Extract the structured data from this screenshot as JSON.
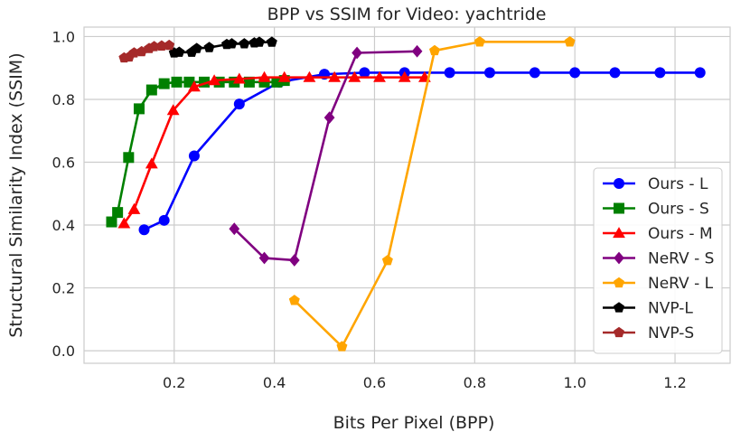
{
  "chart_data": {
    "type": "line",
    "title": "BPP vs SSIM for Video: yachtride",
    "xlabel": "Bits Per Pixel (BPP)",
    "ylabel": "Structural Similarity Index (SSIM)",
    "xlim": [
      0.02,
      1.31
    ],
    "ylim": [
      -0.04,
      1.03
    ],
    "xticks": [
      0.2,
      0.4,
      0.6,
      0.8,
      1.0,
      1.2
    ],
    "xtick_labels": [
      "0.2",
      "0.4",
      "0.6",
      "0.8",
      "1.0",
      "1.2"
    ],
    "yticks": [
      0.0,
      0.2,
      0.4,
      0.6,
      0.8,
      1.0
    ],
    "ytick_labels": [
      "0.0",
      "0.2",
      "0.4",
      "0.6",
      "0.8",
      "1.0"
    ],
    "grid": true,
    "legend_position": "lower-right",
    "series": [
      {
        "name": "Ours - L",
        "color": "#0000ff",
        "marker": "circle",
        "x": [
          0.14,
          0.18,
          0.24,
          0.33,
          0.41,
          0.5,
          0.58,
          0.66,
          0.75,
          0.83,
          0.92,
          1.0,
          1.08,
          1.17,
          1.25
        ],
        "y": [
          0.385,
          0.415,
          0.62,
          0.785,
          0.855,
          0.88,
          0.885,
          0.885,
          0.885,
          0.885,
          0.885,
          0.885,
          0.885,
          0.885,
          0.885
        ]
      },
      {
        "name": "Ours - S",
        "color": "#008000",
        "marker": "square",
        "x": [
          0.075,
          0.087,
          0.109,
          0.13,
          0.155,
          0.18,
          0.205,
          0.23,
          0.26,
          0.29,
          0.32,
          0.35,
          0.38,
          0.405,
          0.42
        ],
        "y": [
          0.41,
          0.44,
          0.615,
          0.77,
          0.83,
          0.85,
          0.855,
          0.855,
          0.855,
          0.855,
          0.855,
          0.855,
          0.855,
          0.855,
          0.86
        ]
      },
      {
        "name": "Ours - M",
        "color": "#ff0000",
        "marker": "triangle",
        "x": [
          0.1,
          0.12,
          0.155,
          0.198,
          0.24,
          0.28,
          0.33,
          0.38,
          0.42,
          0.47,
          0.52,
          0.56,
          0.61,
          0.66,
          0.7
        ],
        "y": [
          0.405,
          0.45,
          0.595,
          0.765,
          0.84,
          0.86,
          0.865,
          0.87,
          0.87,
          0.87,
          0.87,
          0.87,
          0.87,
          0.87,
          0.87
        ]
      },
      {
        "name": "NeRV - S",
        "color": "#800080",
        "marker": "diamond",
        "x": [
          0.32,
          0.38,
          0.44,
          0.51,
          0.565,
          0.685
        ],
        "y": [
          0.388,
          0.295,
          0.288,
          0.742,
          0.948,
          0.953
        ]
      },
      {
        "name": "NeRV - L",
        "color": "#ffa500",
        "marker": "pentagon",
        "x": [
          0.44,
          0.535,
          0.626,
          0.72,
          0.81,
          0.99
        ],
        "y": [
          0.16,
          0.013,
          0.287,
          0.955,
          0.983,
          0.983
        ]
      },
      {
        "name": "NVP-L",
        "color": "#000000",
        "marker": "pentagon",
        "x": [
          0.2,
          0.21,
          0.235,
          0.245,
          0.27,
          0.305,
          0.315,
          0.34,
          0.36,
          0.37,
          0.395
        ],
        "y": [
          0.948,
          0.95,
          0.95,
          0.962,
          0.965,
          0.975,
          0.977,
          0.977,
          0.98,
          0.982,
          0.982
        ]
      },
      {
        "name": "NVP-S",
        "color": "#a52a2a",
        "marker": "pentagon",
        "x": [
          0.1,
          0.11,
          0.12,
          0.135,
          0.15,
          0.16,
          0.175,
          0.19
        ],
        "y": [
          0.932,
          0.935,
          0.948,
          0.952,
          0.962,
          0.968,
          0.97,
          0.972
        ]
      }
    ]
  }
}
